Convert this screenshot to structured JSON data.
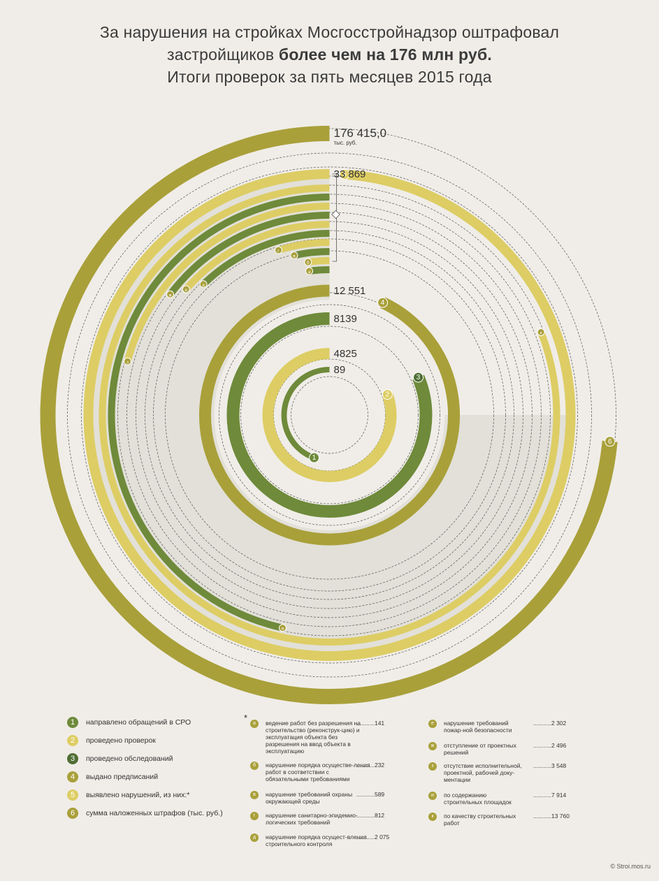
{
  "title": {
    "line1": "За нарушения на стройках Мосгосстройнадзор оштрафовал",
    "line2_pre": "застройщиков ",
    "line2_bold": "более чем на 176 млн руб.",
    "line3": "Итоги проверок за пять месяцев 2015 года"
  },
  "colors": {
    "olive": "#a9a03a",
    "green": "#6e8a3a",
    "yellow": "#ddcd64",
    "shade": "#e0ded6",
    "background": "#f0ede8"
  },
  "chart_data": {
    "type": "radial-bar",
    "main_series": [
      {
        "id": "1",
        "label": "89",
        "value": 89,
        "color": "green"
      },
      {
        "id": "2",
        "label": "4825",
        "value": 4825,
        "color": "yellow"
      },
      {
        "id": "3",
        "label": "8139",
        "value": 8139,
        "color": "green"
      },
      {
        "id": "4",
        "label": "12 551",
        "value": 12551,
        "color": "olive"
      },
      {
        "id": "5",
        "label": "33 869",
        "value": 33869,
        "color": "yellow"
      },
      {
        "id": "6",
        "label": "176 415,0",
        "unit": "тыс. руб.",
        "value": 176415.0,
        "color": "olive"
      }
    ],
    "sub_series": [
      {
        "id": "к",
        "value": 13760
      },
      {
        "id": "и",
        "value": 7914
      },
      {
        "id": "з",
        "value": 3548
      },
      {
        "id": "ж",
        "value": 2496
      },
      {
        "id": "е",
        "value": 2302
      },
      {
        "id": "д",
        "value": 2075
      },
      {
        "id": "г",
        "value": 812
      },
      {
        "id": "в",
        "value": 589
      },
      {
        "id": "б",
        "value": 232
      },
      {
        "id": "а",
        "value": 141
      }
    ]
  },
  "legend": [
    {
      "num": "1",
      "label": "направлено обращений в СРО",
      "color": "#6e8a3a"
    },
    {
      "num": "2",
      "label": "проведено проверок",
      "color": "#ddcd64"
    },
    {
      "num": "3",
      "label": "проведено обследований",
      "color": "#4f6e35"
    },
    {
      "num": "4",
      "label": "выдано предписаний",
      "color": "#a9a03a"
    },
    {
      "num": "5",
      "label": "выявлено нарушений, из них:*",
      "color": "#ddcd64"
    },
    {
      "num": "6",
      "label": "сумма наложенных штрафов (тыс. руб.)",
      "color": "#a9a03a"
    }
  ],
  "sub_legend_star": "*",
  "sub_legend": [
    {
      "letter": "а",
      "text": "ведение работ без разрешения на строительство (реконструк-цию) и эксплуатация объекта без разрешения на ввод объекта в эксплуатацию",
      "value": "...........141"
    },
    {
      "letter": "б",
      "text": "нарушение порядка осуществе-ления работ в соответствии с обязательными требованиями",
      "value": "...........232"
    },
    {
      "letter": "в",
      "text": "нарушение требований охраны окружающей среды",
      "value": "...........589"
    },
    {
      "letter": "г",
      "text": "нарушение санитарно-эпидемио-логических требований",
      "value": "...........812"
    },
    {
      "letter": "д",
      "text": "нарушение порядка осущест-вления строительного контроля",
      "value": "...........2 075"
    },
    {
      "letter": "е",
      "text": "нарушение требований пожар-ной безопасности",
      "value": "...........2 302"
    },
    {
      "letter": "ж",
      "text": "отступление от проектных решений",
      "value": "...........2 496"
    },
    {
      "letter": "з",
      "text": "отсутствие исполнительной, проектной, рабочей доку-ментации",
      "value": "...........3 548"
    },
    {
      "letter": "и",
      "text": "по содержанию строительных площадок",
      "value": "...........7 914"
    },
    {
      "letter": "к",
      "text": "по качеству строительных работ",
      "value": "...........13 760"
    }
  ],
  "source": "© Stroi.mos.ru"
}
